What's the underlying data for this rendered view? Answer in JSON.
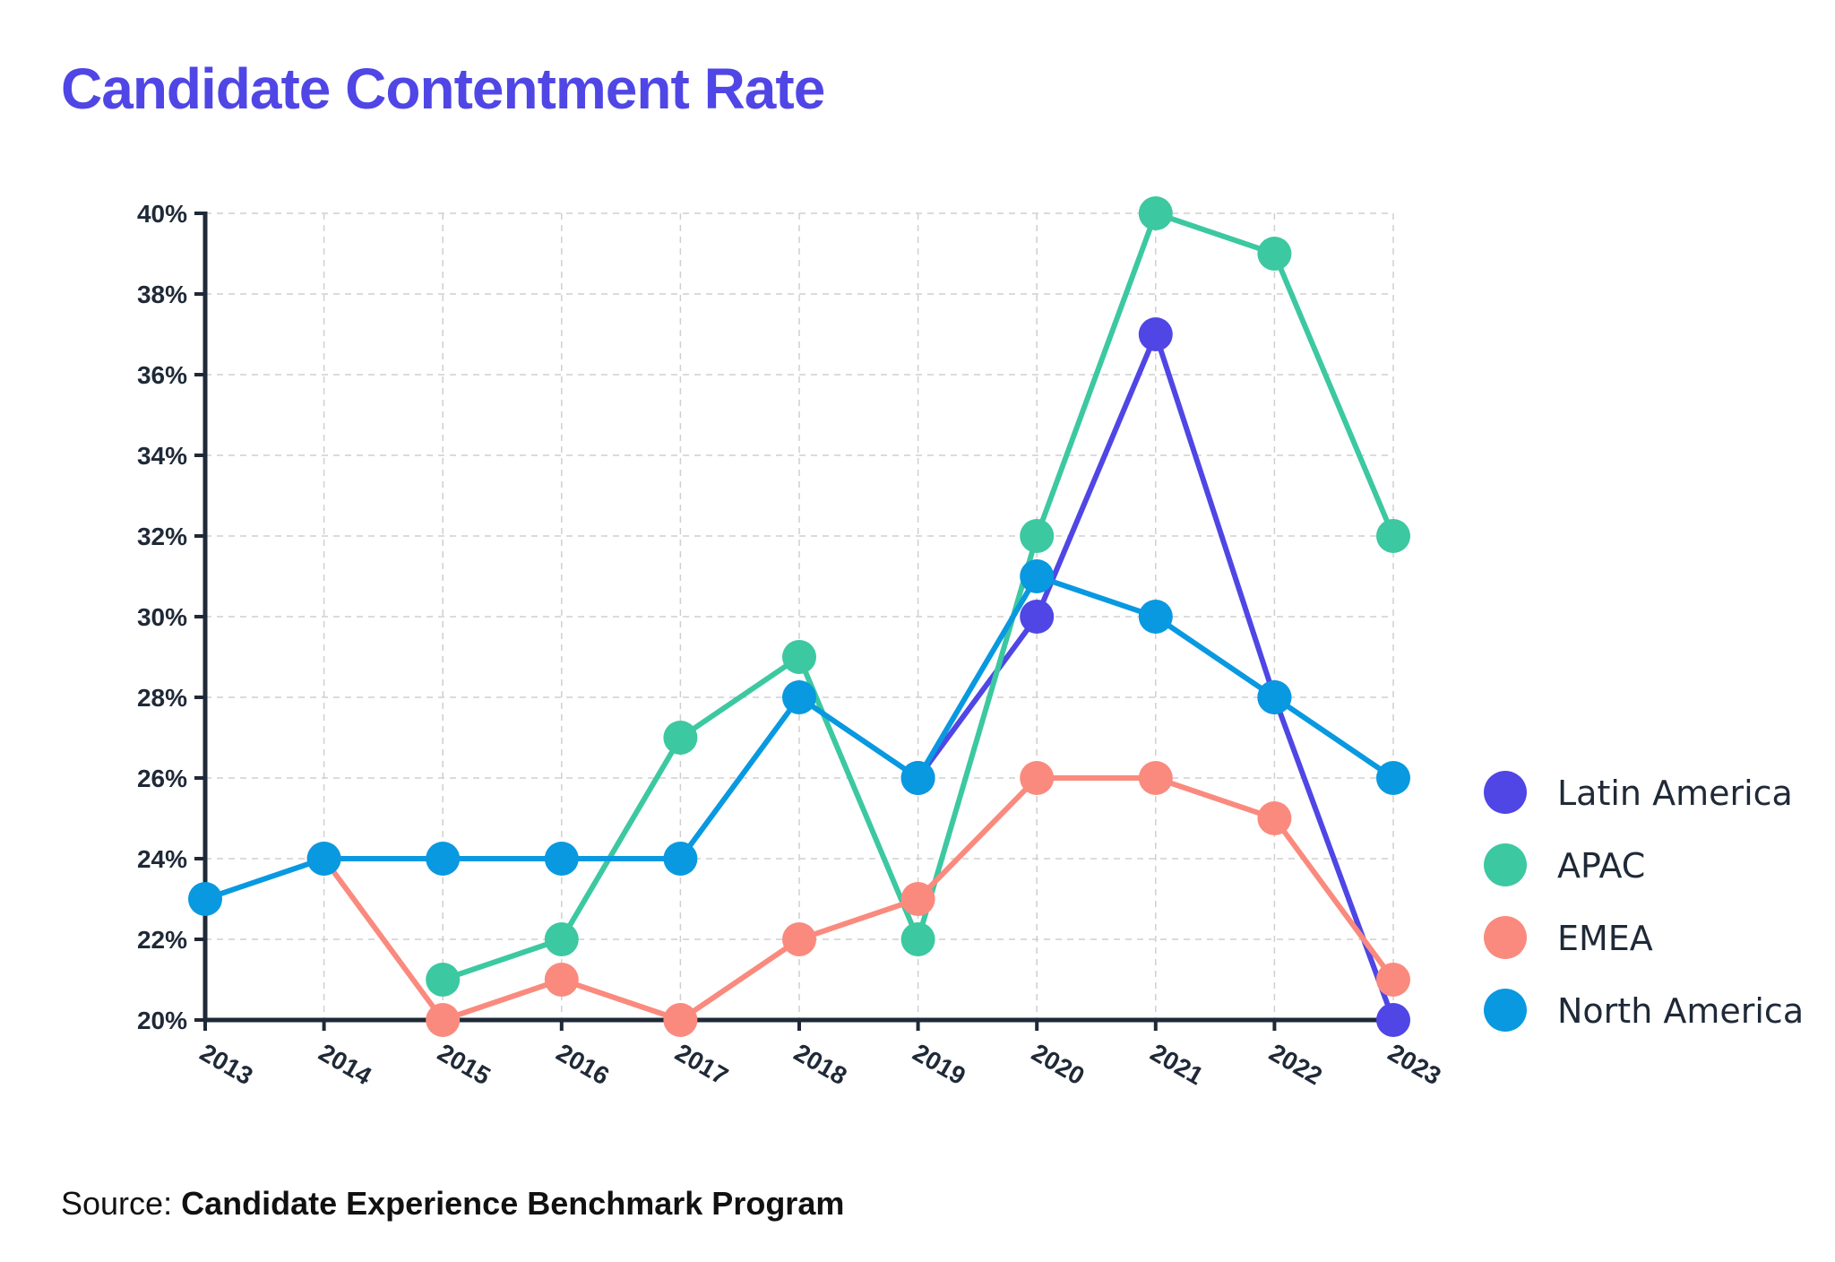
{
  "title": "Candidate Contentment Rate",
  "source": {
    "prefix": "Source: ",
    "name": "Candidate Experience Benchmark Program"
  },
  "chart_data": {
    "type": "line",
    "title": "Candidate Contentment Rate",
    "xlabel": "",
    "ylabel": "",
    "x": [
      2013,
      2014,
      2015,
      2016,
      2017,
      2018,
      2019,
      2020,
      2021,
      2022,
      2023
    ],
    "ylim": [
      20,
      40
    ],
    "ytick_step": 2,
    "ytick_suffix": "%",
    "grid": true,
    "legend_position": "right",
    "series": [
      {
        "name": "Latin America",
        "color": "#4f46e5",
        "values": [
          null,
          null,
          null,
          null,
          null,
          null,
          26,
          30,
          37,
          28,
          20
        ]
      },
      {
        "name": "APAC",
        "color": "#3cc8a0",
        "values": [
          null,
          null,
          21,
          22,
          27,
          29,
          22,
          32,
          40,
          39,
          32
        ]
      },
      {
        "name": "EMEA",
        "color": "#fa8a7e",
        "values": [
          null,
          24,
          20,
          21,
          20,
          22,
          23,
          26,
          26,
          25,
          21
        ]
      },
      {
        "name": "North America",
        "color": "#0899e0",
        "values": [
          23,
          24,
          24,
          24,
          24,
          28,
          26,
          31,
          30,
          28,
          26
        ]
      }
    ]
  }
}
